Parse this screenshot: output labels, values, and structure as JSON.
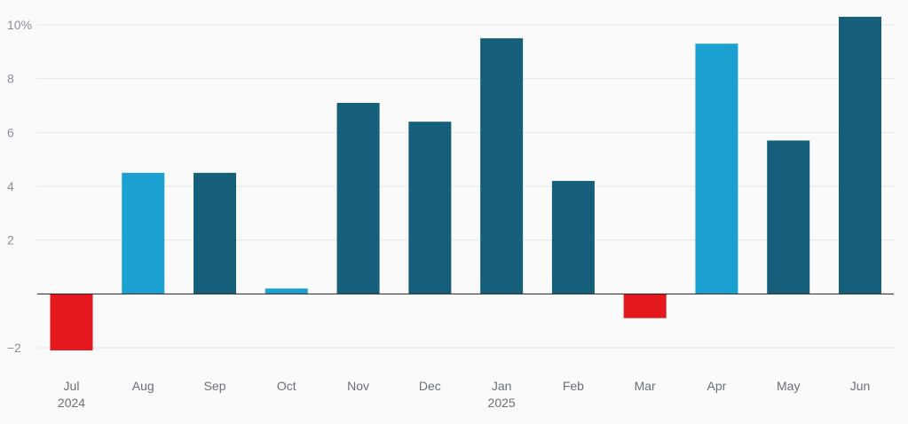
{
  "chart_data": {
    "type": "bar",
    "title": "",
    "xlabel": "",
    "ylabel": "",
    "ylim": [
      -2.6,
      10.5
    ],
    "y_ticks": [
      {
        "value": 10,
        "label": "10%"
      },
      {
        "value": 8,
        "label": "8"
      },
      {
        "value": 6,
        "label": "6"
      },
      {
        "value": 4,
        "label": "4"
      },
      {
        "value": 2,
        "label": "2"
      },
      {
        "value": -2,
        "label": "−2"
      }
    ],
    "grid": true,
    "categories": [
      "Jul",
      "Aug",
      "Sep",
      "Oct",
      "Nov",
      "Dec",
      "Jan",
      "Feb",
      "Mar",
      "Apr",
      "May",
      "Jun"
    ],
    "year_labels": [
      "2024",
      "",
      "",
      "",
      "",
      "",
      "2025",
      "",
      "",
      "",
      "",
      ""
    ],
    "values": [
      -2.1,
      4.5,
      4.5,
      0.2,
      7.1,
      6.4,
      9.5,
      4.2,
      -0.9,
      9.3,
      5.7,
      10.3
    ],
    "bar_colors": [
      "#e3191e",
      "#1ba1d1",
      "#165f7a",
      "#1ba1d1",
      "#165f7a",
      "#165f7a",
      "#165f7a",
      "#165f7a",
      "#e3191e",
      "#1ba1d1",
      "#165f7a",
      "#165f7a"
    ],
    "colors": {
      "dark": "#165f7a",
      "light": "#1ba1d1",
      "negative": "#e3191e"
    }
  }
}
